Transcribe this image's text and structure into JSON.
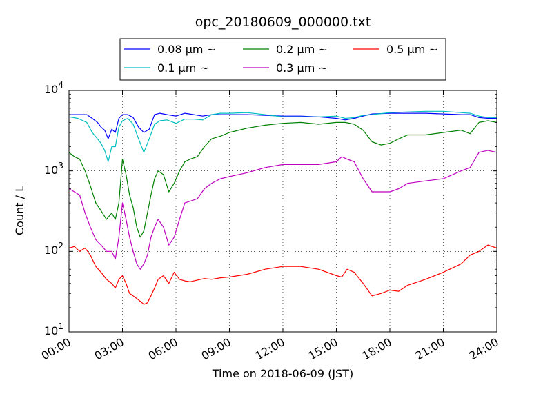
{
  "chart_data": {
    "type": "line",
    "title": "opc_20180609_000000.txt",
    "xlabel": "Time on 2018-06-09 (JST)",
    "ylabel": "Count / L",
    "x_ticks": [
      "00:00",
      "03:00",
      "06:00",
      "09:00",
      "12:00",
      "15:00",
      "18:00",
      "21:00",
      "24:00"
    ],
    "y_ticks": [
      {
        "base": "10",
        "exp": "1"
      },
      {
        "base": "10",
        "exp": "2"
      },
      {
        "base": "10",
        "exp": "3"
      },
      {
        "base": "10",
        "exp": "4"
      }
    ],
    "xlim": [
      0,
      24
    ],
    "ylim": [
      10,
      10000
    ],
    "yscale": "log",
    "grid": true,
    "legend_position": "top-center",
    "series": [
      {
        "name": "0.08 μm ~",
        "color": "#0000ff",
        "x": [
          0,
          0.5,
          1.0,
          1.3,
          1.6,
          1.8,
          2.0,
          2.2,
          2.4,
          2.6,
          2.8,
          3.0,
          3.3,
          3.6,
          3.9,
          4.2,
          4.5,
          4.8,
          5.1,
          5.5,
          6.0,
          6.5,
          7.0,
          7.5,
          8.0,
          8.5,
          9.0,
          10.0,
          11.0,
          12.0,
          13.0,
          14.0,
          15.0,
          15.5,
          16.0,
          16.5,
          17.0,
          18.0,
          19.0,
          20.0,
          21.0,
          22.0,
          22.5,
          23.0,
          23.5,
          24.0
        ],
        "y": [
          5000,
          5000,
          5000,
          4500,
          4000,
          3500,
          3200,
          2500,
          3300,
          3000,
          4500,
          5000,
          5000,
          4600,
          3500,
          3000,
          3300,
          5000,
          5200,
          5000,
          4800,
          5200,
          5000,
          4800,
          5000,
          5000,
          5000,
          5000,
          4900,
          4800,
          4800,
          4700,
          4500,
          4300,
          4500,
          4800,
          5100,
          5200,
          5200,
          5200,
          5100,
          5000,
          5000,
          4600,
          4500,
          4500
        ]
      },
      {
        "name": "0.1 μm ~",
        "color": "#00bfbf",
        "x": [
          0,
          0.5,
          1.0,
          1.3,
          1.6,
          1.8,
          2.0,
          2.2,
          2.4,
          2.6,
          2.8,
          3.0,
          3.3,
          3.6,
          3.9,
          4.2,
          4.5,
          4.8,
          5.1,
          5.5,
          6.0,
          6.5,
          7.0,
          7.5,
          8.0,
          8.5,
          9.0,
          10.0,
          11.0,
          12.0,
          13.0,
          14.0,
          15.0,
          15.5,
          16.0,
          16.5,
          17.0,
          18.0,
          19.0,
          20.0,
          21.0,
          22.0,
          22.5,
          23.0,
          23.5,
          24.0
        ],
        "y": [
          4700,
          4500,
          4000,
          3000,
          2500,
          2200,
          1800,
          1300,
          2000,
          2000,
          3500,
          4200,
          4500,
          3800,
          2500,
          1700,
          2500,
          3800,
          4200,
          4300,
          3900,
          4400,
          4400,
          4300,
          5000,
          5200,
          5200,
          5300,
          5000,
          4700,
          4700,
          4700,
          4800,
          4500,
          4600,
          4900,
          5000,
          5300,
          5400,
          5500,
          5500,
          5300,
          5200,
          4800,
          4600,
          4600
        ]
      },
      {
        "name": "0.2 μm ~",
        "color": "#008000",
        "x": [
          0,
          0.3,
          0.6,
          0.9,
          1.2,
          1.5,
          1.8,
          2.1,
          2.4,
          2.6,
          2.8,
          3.0,
          3.2,
          3.4,
          3.6,
          3.8,
          4.0,
          4.2,
          4.4,
          4.6,
          4.8,
          5.0,
          5.3,
          5.6,
          5.9,
          6.2,
          6.5,
          6.8,
          7.2,
          7.6,
          8.0,
          8.5,
          9.0,
          10.0,
          11.0,
          12.0,
          13.0,
          14.0,
          15.0,
          15.5,
          16.0,
          16.5,
          17.0,
          17.5,
          18.0,
          18.5,
          19.0,
          20.0,
          21.0,
          22.0,
          22.5,
          23.0,
          23.5,
          24.0
        ],
        "y": [
          1700,
          1500,
          1400,
          1000,
          650,
          400,
          320,
          250,
          300,
          250,
          400,
          1400,
          900,
          500,
          350,
          200,
          150,
          180,
          300,
          500,
          800,
          1000,
          900,
          550,
          700,
          1000,
          1300,
          1400,
          1500,
          2000,
          2500,
          2700,
          3000,
          3400,
          3700,
          3900,
          4000,
          3800,
          4000,
          4000,
          3800,
          3200,
          2300,
          2100,
          2200,
          2500,
          2800,
          2800,
          3000,
          3200,
          2900,
          4000,
          4200,
          4000
        ]
      },
      {
        "name": "0.3 μm ~",
        "color": "#bf00bf",
        "x": [
          0,
          0.3,
          0.6,
          0.9,
          1.2,
          1.5,
          1.8,
          2.1,
          2.4,
          2.6,
          2.8,
          3.0,
          3.2,
          3.4,
          3.6,
          3.8,
          4.0,
          4.2,
          4.4,
          4.6,
          4.8,
          5.0,
          5.3,
          5.6,
          5.9,
          6.2,
          6.5,
          6.8,
          7.2,
          7.6,
          8.0,
          8.5,
          9.0,
          10.0,
          11.0,
          12.0,
          13.0,
          14.0,
          15.0,
          15.3,
          15.6,
          16.0,
          16.5,
          17.0,
          17.5,
          18.0,
          18.5,
          19.0,
          20.0,
          21.0,
          22.0,
          22.5,
          23.0,
          23.5,
          24.0
        ],
        "y": [
          600,
          550,
          500,
          300,
          200,
          140,
          120,
          100,
          100,
          80,
          150,
          400,
          250,
          150,
          100,
          70,
          60,
          70,
          90,
          150,
          200,
          250,
          200,
          120,
          150,
          250,
          400,
          420,
          450,
          600,
          700,
          800,
          850,
          950,
          1100,
          1200,
          1200,
          1200,
          1300,
          1500,
          1400,
          1300,
          800,
          550,
          550,
          550,
          600,
          700,
          750,
          800,
          1000,
          1100,
          1700,
          1800,
          1700
        ]
      },
      {
        "name": "0.5 μm ~",
        "color": "#ff0000",
        "x": [
          0,
          0.3,
          0.6,
          0.9,
          1.2,
          1.5,
          1.8,
          2.1,
          2.4,
          2.6,
          2.8,
          3.0,
          3.2,
          3.4,
          3.6,
          3.8,
          4.0,
          4.2,
          4.4,
          4.6,
          4.8,
          5.0,
          5.3,
          5.6,
          5.9,
          6.2,
          6.5,
          6.8,
          7.2,
          7.6,
          8.0,
          8.5,
          9.0,
          10.0,
          11.0,
          12.0,
          13.0,
          14.0,
          15.0,
          15.3,
          15.6,
          16.0,
          16.5,
          17.0,
          17.5,
          18.0,
          18.5,
          19.0,
          20.0,
          21.0,
          22.0,
          22.5,
          23.0,
          23.5,
          24.0
        ],
        "y": [
          110,
          115,
          100,
          110,
          90,
          65,
          55,
          45,
          40,
          35,
          45,
          50,
          40,
          30,
          28,
          26,
          24,
          22,
          23,
          28,
          35,
          45,
          50,
          40,
          55,
          45,
          43,
          42,
          44,
          46,
          45,
          47,
          48,
          52,
          60,
          65,
          65,
          60,
          50,
          48,
          60,
          55,
          40,
          28,
          30,
          33,
          32,
          38,
          45,
          55,
          70,
          90,
          100,
          120,
          110
        ]
      }
    ]
  }
}
